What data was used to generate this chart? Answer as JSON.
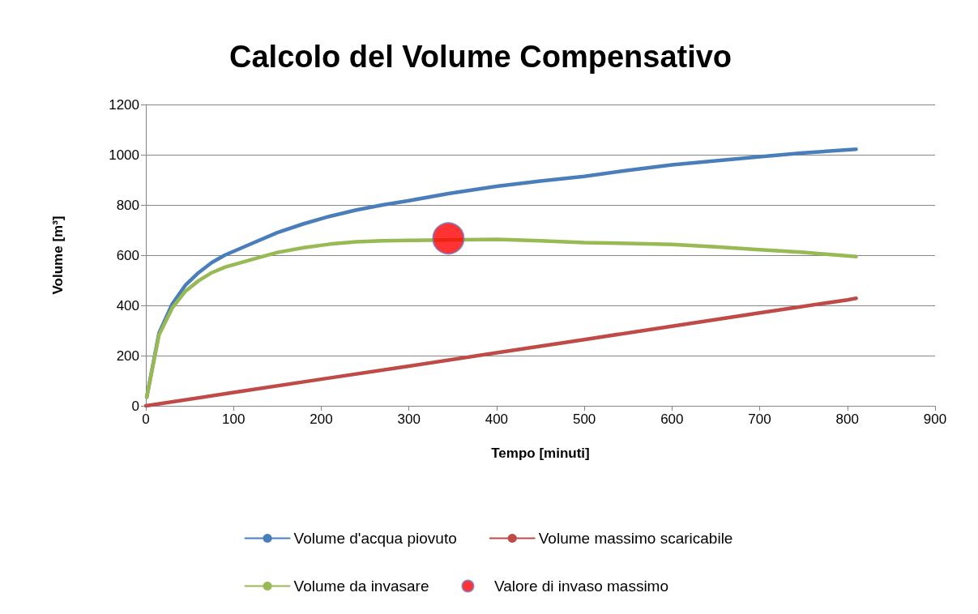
{
  "chart_data": {
    "type": "line",
    "title": "Calcolo del Volume Compensativo",
    "xlabel": "Tempo [minuti]",
    "ylabel": "Volume [m³]",
    "xlim": [
      0,
      900
    ],
    "xticks": [
      0,
      100,
      200,
      300,
      400,
      500,
      600,
      700,
      800,
      900
    ],
    "ylim": [
      0,
      1200
    ],
    "yticks": [
      0,
      200,
      400,
      600,
      800,
      1000,
      1200
    ],
    "grid": "y",
    "legend": "bottom",
    "marker": "none",
    "line_style": "solid",
    "x": [
      1,
      15,
      30,
      45,
      60,
      75,
      90,
      120,
      150,
      180,
      210,
      240,
      270,
      300,
      345,
      400,
      450,
      500,
      550,
      600,
      650,
      700,
      750,
      810
    ],
    "series": [
      {
        "name": "Volume d'acqua piovuto",
        "color": "#4a7ebb",
        "values": [
          35,
          290,
          405,
          480,
          530,
          570,
          600,
          645,
          690,
          725,
          755,
          780,
          800,
          817,
          845,
          874,
          895,
          914,
          938,
          960,
          976,
          992,
          1007,
          1022
        ]
      },
      {
        "name": "Volume massimo scaricabile",
        "color": "#be4b48",
        "x": [
          0,
          100,
          200,
          300,
          400,
          500,
          600,
          700,
          800,
          810
        ],
        "values": [
          0,
          53,
          106,
          158,
          211,
          264,
          317,
          370,
          422,
          428
        ]
      },
      {
        "name": "Volume da invasare",
        "color": "#98b954",
        "values": [
          34,
          282,
          389,
          456,
          498,
          530,
          552,
          582,
          611,
          630,
          644,
          653,
          657,
          659,
          null,
          663,
          657,
          650,
          647,
          643,
          633,
          622,
          611,
          594
        ]
      },
      {
        "name": "Valore di invaso massimo",
        "type": "scatter",
        "color": "#ff0000",
        "marker": "circle",
        "x": [
          345
        ],
        "values": [
          667
        ]
      }
    ]
  }
}
